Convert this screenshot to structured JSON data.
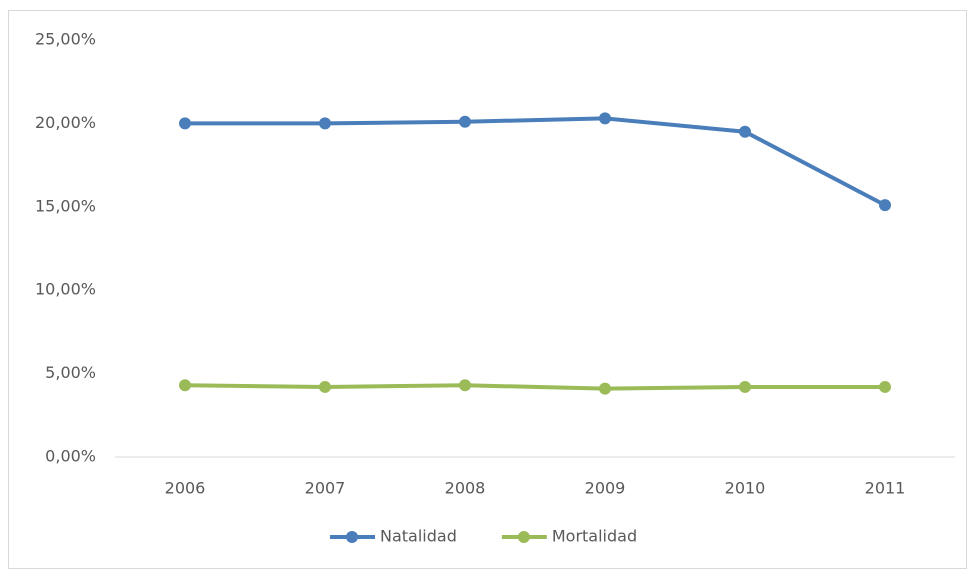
{
  "chart_data": {
    "type": "line",
    "categories": [
      "2006",
      "2007",
      "2008",
      "2009",
      "2010",
      "2011"
    ],
    "series": [
      {
        "name": "Natalidad",
        "color": "#4a7ebb",
        "values": [
          20.0,
          20.0,
          20.1,
          20.3,
          19.5,
          15.1
        ]
      },
      {
        "name": "Mortalidad",
        "color": "#9bbb59",
        "values": [
          4.3,
          4.2,
          4.3,
          4.1,
          4.2,
          4.2
        ]
      }
    ],
    "ylim": [
      0,
      25
    ],
    "yticks": [
      {
        "value": 0,
        "label": "0,00%"
      },
      {
        "value": 5,
        "label": "5,00%"
      },
      {
        "value": 10,
        "label": "10,00%"
      },
      {
        "value": 15,
        "label": "15,00%"
      },
      {
        "value": 20,
        "label": "20,00%"
      },
      {
        "value": 25,
        "label": "25,00%"
      }
    ],
    "grid": false,
    "legend": "bottom"
  }
}
